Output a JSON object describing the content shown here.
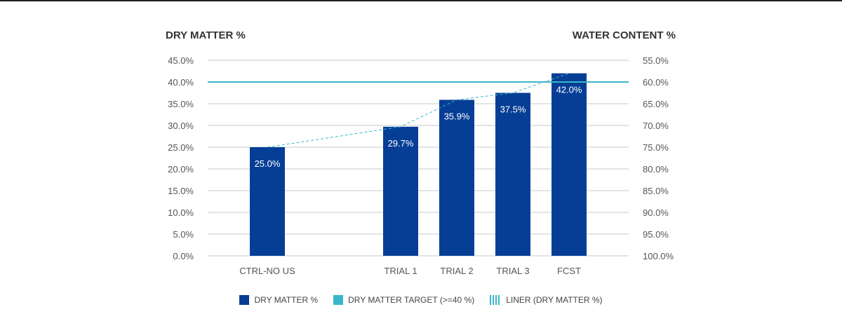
{
  "chart_data": {
    "type": "bar",
    "left_axis_title": "DRY MATTER %",
    "right_axis_title": "WATER CONTENT %",
    "categories": [
      "CTRL-NO US",
      "",
      "TRIAL 1",
      "TRIAL 2",
      "TRIAL 3",
      "FCST"
    ],
    "series": [
      {
        "name": "DRY MATTER %",
        "type": "bar",
        "color": "#063e96",
        "values": [
          25.0,
          null,
          29.7,
          35.9,
          37.5,
          42.0
        ],
        "labels": [
          "25.0%",
          "",
          "29.7%",
          "35.9%",
          "37.5%",
          "42.0%"
        ]
      },
      {
        "name": "DRY MATTER TARGET (>=40 %)",
        "type": "hline",
        "color": "#3bb6c8",
        "value": 40
      },
      {
        "name": "LINER (DRY MATTER %)",
        "type": "trend",
        "color": "#3bb6c8",
        "values": [
          25.0,
          null,
          29.7,
          35.9,
          37.5,
          42.0
        ]
      }
    ],
    "ylim": [
      0,
      45
    ],
    "y_ticks": [
      "0.0%",
      "5.0%",
      "10.0%",
      "15.0%",
      "20.0%",
      "25.0%",
      "30.0%",
      "35.0%",
      "40.0%",
      "45.0%"
    ],
    "y2lim": [
      100,
      55
    ],
    "y2_ticks": [
      "100.0%",
      "95.0%",
      "90.0%",
      "85.0%",
      "80.0%",
      "75.0%",
      "70.0%",
      "65.0%",
      "60.0%",
      "55.0%"
    ],
    "grid": true,
    "legend_position": "bottom"
  },
  "legend": {
    "items": [
      "DRY MATTER %",
      "DRY MATTER TARGET (>=40 %)",
      "LINER (DRY MATTER %)"
    ]
  },
  "colors": {
    "bar": "#063e96",
    "target": "#3bb6c8",
    "grid": "#c8c8c8"
  }
}
